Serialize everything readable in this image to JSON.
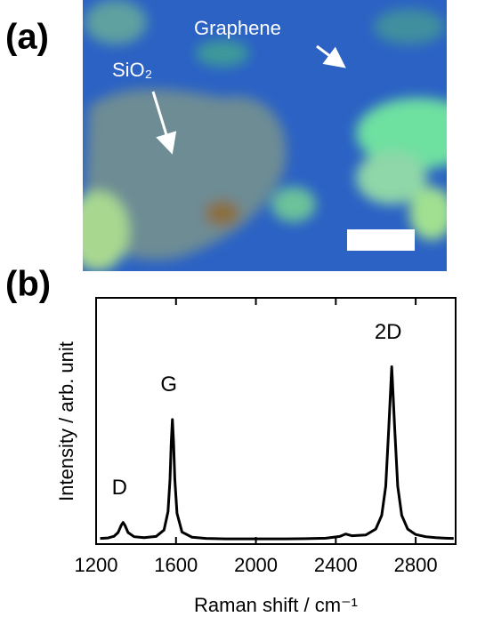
{
  "panel_a": {
    "label": "(a)",
    "annotations": [
      "Graphene",
      "SiO₂"
    ]
  },
  "chart_data": {
    "type": "line",
    "panel_label": "(b)",
    "x_label": "Raman shift / cm⁻¹",
    "y_label": "Intensity / arb. unit",
    "x": [
      1220,
      1260,
      1290,
      1310,
      1325,
      1335,
      1345,
      1360,
      1390,
      1440,
      1500,
      1540,
      1560,
      1570,
      1576,
      1582,
      1588,
      1594,
      1605,
      1630,
      1680,
      1750,
      1850,
      1950,
      2050,
      2150,
      2250,
      2350,
      2420,
      2450,
      2480,
      2550,
      2600,
      2630,
      2650,
      2665,
      2680,
      2695,
      2710,
      2730,
      2760,
      2800,
      2850,
      2900,
      2950,
      2990
    ],
    "series": [
      {
        "color": "#000000",
        "values": [
          0.023,
          0.025,
          0.032,
          0.047,
          0.075,
          0.088,
          0.075,
          0.047,
          0.03,
          0.026,
          0.031,
          0.057,
          0.132,
          0.263,
          0.409,
          0.506,
          0.409,
          0.263,
          0.125,
          0.049,
          0.028,
          0.023,
          0.021,
          0.021,
          0.021,
          0.021,
          0.022,
          0.024,
          0.031,
          0.041,
          0.034,
          0.037,
          0.061,
          0.117,
          0.235,
          0.468,
          0.72,
          0.468,
          0.235,
          0.117,
          0.061,
          0.039,
          0.03,
          0.026,
          0.024,
          0.023
        ]
      }
    ],
    "annotations": [
      "D",
      "G",
      "2D"
    ],
    "xlim": [
      1200,
      3000
    ],
    "xticks": [
      1200,
      1600,
      2000,
      2400,
      2800
    ],
    "ylim": [
      0,
      1
    ]
  }
}
